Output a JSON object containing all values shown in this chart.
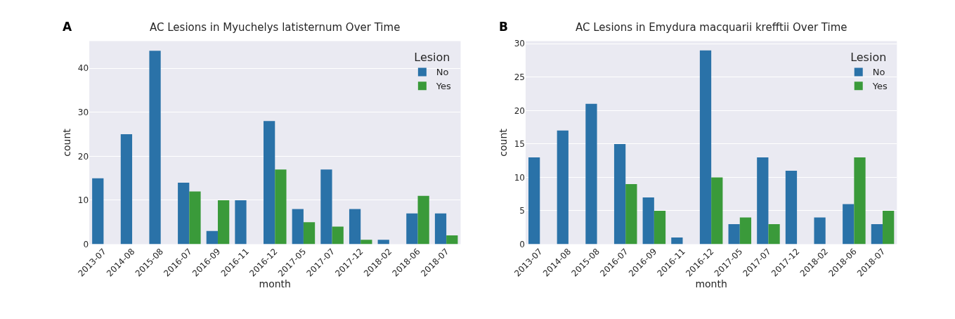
{
  "chart_data": [
    {
      "type": "bar",
      "title": "AC Lesions in Myuchelys latisternum Over Time",
      "xlabel": "month",
      "ylabel": "count",
      "legend_title": "Lesion",
      "annotations": [
        "A"
      ],
      "categories": [
        "2013-07",
        "2014-08",
        "2015-08",
        "2016-07",
        "2016-09",
        "2016-11",
        "2016-12",
        "2017-05",
        "2017-07",
        "2017-12",
        "2018-02",
        "2018-06",
        "2018-07"
      ],
      "series": [
        {
          "name": "No",
          "color": "#2a72a8",
          "values": [
            15,
            25,
            44,
            14,
            3,
            10,
            28,
            8,
            17,
            8,
            1,
            7,
            7
          ]
        },
        {
          "name": "Yes",
          "color": "#3a9a3a",
          "values": [
            null,
            null,
            null,
            12,
            10,
            null,
            17,
            5,
            4,
            1,
            null,
            11,
            2
          ]
        }
      ],
      "ylim": [
        0,
        46.2
      ],
      "yticks": [
        0,
        10,
        20,
        30,
        40
      ],
      "grid": "y",
      "legend": "top right"
    },
    {
      "type": "bar",
      "title": "AC Lesions in Emydura macquarii krefftii Over Time",
      "xlabel": "month",
      "ylabel": "count",
      "legend_title": "Lesion",
      "annotations": [
        "B"
      ],
      "categories": [
        "2013-07",
        "2014-08",
        "2015-08",
        "2016-07",
        "2016-09",
        "2016-11",
        "2016-12",
        "2017-05",
        "2017-07",
        "2017-12",
        "2018-02",
        "2018-06",
        "2018-07"
      ],
      "series": [
        {
          "name": "No",
          "color": "#2a72a8",
          "values": [
            13,
            17,
            21,
            15,
            7,
            1,
            29,
            3,
            13,
            11,
            4,
            6,
            3
          ]
        },
        {
          "name": "Yes",
          "color": "#3a9a3a",
          "values": [
            null,
            null,
            null,
            9,
            5,
            null,
            10,
            4,
            3,
            null,
            null,
            13,
            5
          ]
        }
      ],
      "ylim": [
        0,
        30.4
      ],
      "yticks": [
        0,
        5,
        10,
        15,
        20,
        25,
        30
      ],
      "grid": "y",
      "legend": "top right"
    }
  ]
}
